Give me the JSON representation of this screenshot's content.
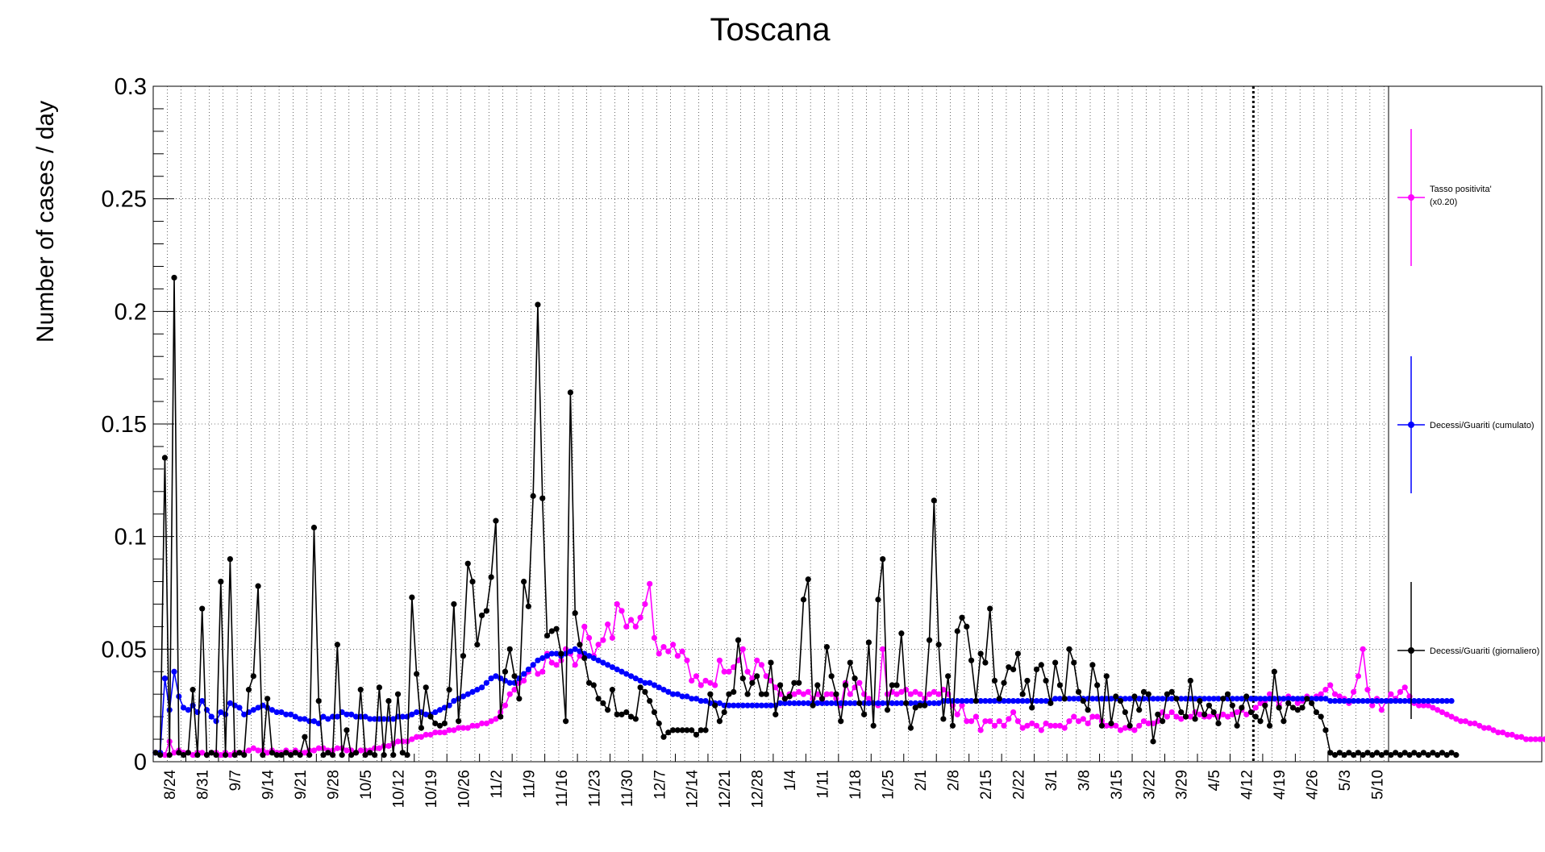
{
  "chart_data": {
    "type": "line",
    "title": "Toscana",
    "ylabel": "Number of cases / day",
    "xlabel": "",
    "ylim": [
      0,
      0.3
    ],
    "x_start_date": "2020-08-24",
    "x_end_date": "2021-05-16",
    "y_ticks": [
      "0",
      "0.05",
      "0.1",
      "0.15",
      "0.2",
      "0.25",
      "0.3"
    ],
    "x_tick_labels": [
      "8/24",
      "8/31",
      "9/7",
      "9/14",
      "9/21",
      "9/28",
      "10/5",
      "10/12",
      "10/19",
      "10/26",
      "11/2",
      "11/9",
      "11/16",
      "11/23",
      "11/30",
      "12/7",
      "12/14",
      "12/21",
      "12/28",
      "1/4",
      "1/11",
      "1/18",
      "1/25",
      "2/1",
      "2/8",
      "2/15",
      "2/22",
      "3/1",
      "3/8",
      "3/15",
      "3/22",
      "3/29",
      "4/5",
      "4/12",
      "4/19",
      "4/26",
      "5/3",
      "5/10"
    ],
    "grid": true,
    "legend_placement": "right",
    "marker_date": "2021-04-17",
    "series": [
      {
        "name": "Tasso positivita' (x0.20)",
        "color": "#ff00ff",
        "values": [
          0.004,
          0.004,
          0.003,
          0.009,
          0.004,
          0.005,
          0.004,
          0.004,
          0.003,
          0.004,
          0.004,
          0.003,
          0.004,
          0.004,
          0.003,
          0.004,
          0.003,
          0.004,
          0.004,
          0.004,
          0.005,
          0.006,
          0.005,
          0.005,
          0.004,
          0.005,
          0.004,
          0.004,
          0.005,
          0.004,
          0.005,
          0.004,
          0.004,
          0.005,
          0.005,
          0.006,
          0.006,
          0.005,
          0.005,
          0.006,
          0.006,
          0.005,
          0.005,
          0.004,
          0.005,
          0.005,
          0.005,
          0.006,
          0.006,
          0.007,
          0.007,
          0.008,
          0.009,
          0.009,
          0.009,
          0.01,
          0.011,
          0.011,
          0.012,
          0.012,
          0.013,
          0.013,
          0.013,
          0.014,
          0.014,
          0.015,
          0.015,
          0.015,
          0.016,
          0.016,
          0.017,
          0.017,
          0.018,
          0.019,
          0.022,
          0.025,
          0.03,
          0.032,
          0.035,
          0.036,
          0.04,
          0.043,
          0.039,
          0.04,
          0.048,
          0.044,
          0.043,
          0.045,
          0.05,
          0.048,
          0.043,
          0.047,
          0.06,
          0.055,
          0.047,
          0.052,
          0.054,
          0.061,
          0.055,
          0.07,
          0.067,
          0.06,
          0.063,
          0.06,
          0.064,
          0.07,
          0.079,
          0.055,
          0.048,
          0.051,
          0.049,
          0.052,
          0.047,
          0.049,
          0.045,
          0.036,
          0.038,
          0.034,
          0.036,
          0.035,
          0.034,
          0.045,
          0.04,
          0.04,
          0.042,
          0.045,
          0.05,
          0.04,
          0.037,
          0.045,
          0.043,
          0.038,
          0.036,
          0.033,
          0.03,
          0.028,
          0.03,
          0.03,
          0.031,
          0.03,
          0.031,
          0.028,
          0.03,
          0.027,
          0.03,
          0.03,
          0.028,
          0.025,
          0.035,
          0.03,
          0.033,
          0.035,
          0.03,
          0.028,
          0.026,
          0.025,
          0.05,
          0.03,
          0.031,
          0.03,
          0.031,
          0.032,
          0.03,
          0.031,
          0.03,
          0.028,
          0.03,
          0.031,
          0.03,
          0.032,
          0.03,
          0.025,
          0.021,
          0.025,
          0.018,
          0.018,
          0.02,
          0.014,
          0.018,
          0.018,
          0.016,
          0.018,
          0.016,
          0.019,
          0.022,
          0.018,
          0.015,
          0.016,
          0.017,
          0.016,
          0.014,
          0.017,
          0.016,
          0.016,
          0.016,
          0.015,
          0.018,
          0.02,
          0.018,
          0.019,
          0.017,
          0.02,
          0.02,
          0.018,
          0.016,
          0.016,
          0.016,
          0.014,
          0.015,
          0.015,
          0.014,
          0.016,
          0.018,
          0.017,
          0.017,
          0.018,
          0.022,
          0.02,
          0.022,
          0.02,
          0.019,
          0.02,
          0.02,
          0.022,
          0.021,
          0.02,
          0.02,
          0.021,
          0.02,
          0.021,
          0.02,
          0.021,
          0.022,
          0.023,
          0.021,
          0.022,
          0.024,
          0.026,
          0.027,
          0.03,
          0.028,
          0.025,
          0.028,
          0.029,
          0.028,
          0.026,
          0.027,
          0.029,
          0.028,
          0.029,
          0.03,
          0.032,
          0.034,
          0.03,
          0.029,
          0.028,
          0.026,
          0.031,
          0.038,
          0.05,
          0.032,
          0.025,
          0.028,
          0.023,
          0.027,
          0.03,
          0.028,
          0.031,
          0.033,
          0.029,
          0.026,
          0.025,
          0.025,
          0.025,
          0.024,
          0.023,
          0.022,
          0.021,
          0.02,
          0.019,
          0.018,
          0.018,
          0.017,
          0.017,
          0.016,
          0.015,
          0.015,
          0.014,
          0.013,
          0.013,
          0.012,
          0.012,
          0.011,
          0.011,
          0.01,
          0.01,
          0.01,
          0.01,
          0.01
        ]
      },
      {
        "name": "Decessi/Guariti (cumulato)",
        "color": "#0000ff",
        "values": [
          0.004,
          0.004,
          0.037,
          0.023,
          0.04,
          0.029,
          0.024,
          0.023,
          0.025,
          0.022,
          0.027,
          0.023,
          0.02,
          0.018,
          0.022,
          0.021,
          0.026,
          0.025,
          0.024,
          0.021,
          0.022,
          0.023,
          0.024,
          0.025,
          0.024,
          0.023,
          0.022,
          0.022,
          0.021,
          0.021,
          0.02,
          0.019,
          0.019,
          0.018,
          0.018,
          0.017,
          0.02,
          0.019,
          0.02,
          0.02,
          0.022,
          0.021,
          0.021,
          0.02,
          0.02,
          0.02,
          0.019,
          0.019,
          0.019,
          0.019,
          0.019,
          0.019,
          0.02,
          0.02,
          0.02,
          0.021,
          0.022,
          0.022,
          0.021,
          0.021,
          0.022,
          0.023,
          0.024,
          0.025,
          0.027,
          0.028,
          0.029,
          0.03,
          0.031,
          0.032,
          0.033,
          0.035,
          0.037,
          0.038,
          0.037,
          0.036,
          0.035,
          0.035,
          0.037,
          0.039,
          0.041,
          0.043,
          0.045,
          0.046,
          0.047,
          0.048,
          0.048,
          0.047,
          0.048,
          0.049,
          0.05,
          0.049,
          0.048,
          0.047,
          0.046,
          0.045,
          0.044,
          0.043,
          0.042,
          0.041,
          0.04,
          0.039,
          0.038,
          0.037,
          0.036,
          0.035,
          0.035,
          0.034,
          0.033,
          0.032,
          0.031,
          0.03,
          0.03,
          0.029,
          0.029,
          0.028,
          0.028,
          0.027,
          0.027,
          0.026,
          0.026,
          0.026,
          0.025,
          0.025,
          0.025,
          0.025,
          0.025,
          0.025,
          0.025,
          0.025,
          0.025,
          0.025,
          0.025,
          0.025,
          0.026,
          0.026,
          0.026,
          0.026,
          0.026,
          0.026,
          0.026,
          0.026,
          0.026,
          0.026,
          0.026,
          0.026,
          0.026,
          0.026,
          0.026,
          0.026,
          0.026,
          0.026,
          0.026,
          0.026,
          0.026,
          0.026,
          0.026,
          0.026,
          0.026,
          0.026,
          0.026,
          0.026,
          0.026,
          0.026,
          0.026,
          0.026,
          0.026,
          0.026,
          0.026,
          0.027,
          0.027,
          0.027,
          0.027,
          0.027,
          0.027,
          0.027,
          0.027,
          0.027,
          0.027,
          0.027,
          0.027,
          0.027,
          0.027,
          0.027,
          0.027,
          0.027,
          0.027,
          0.027,
          0.027,
          0.027,
          0.027,
          0.027,
          0.027,
          0.028,
          0.028,
          0.028,
          0.028,
          0.028,
          0.028,
          0.028,
          0.028,
          0.028,
          0.028,
          0.028,
          0.028,
          0.028,
          0.028,
          0.028,
          0.028,
          0.028,
          0.028,
          0.028,
          0.028,
          0.028,
          0.028,
          0.028,
          0.028,
          0.028,
          0.028,
          0.028,
          0.028,
          0.028,
          0.028,
          0.028,
          0.028,
          0.028,
          0.028,
          0.028,
          0.028,
          0.028,
          0.028,
          0.028,
          0.028,
          0.028,
          0.028,
          0.028,
          0.028,
          0.028,
          0.028,
          0.028,
          0.028,
          0.028,
          0.028,
          0.028,
          0.028,
          0.028,
          0.028,
          0.028,
          0.028,
          0.028,
          0.028,
          0.028,
          0.027,
          0.027,
          0.027,
          0.027,
          0.027,
          0.027,
          0.027,
          0.027,
          0.027,
          0.027,
          0.027,
          0.027,
          0.027,
          0.027,
          0.027,
          0.027,
          0.027,
          0.027,
          0.027,
          0.027,
          0.027,
          0.027,
          0.027,
          0.027,
          0.027,
          0.027,
          0.027
        ]
      },
      {
        "name": "Decessi/Guariti (giornaliero)",
        "color": "#000000",
        "values": [
          0.004,
          0.003,
          0.135,
          0.003,
          0.215,
          0.004,
          0.003,
          0.004,
          0.032,
          0.003,
          0.068,
          0.003,
          0.004,
          0.003,
          0.08,
          0.003,
          0.09,
          0.003,
          0.004,
          0.003,
          0.032,
          0.038,
          0.078,
          0.003,
          0.028,
          0.004,
          0.003,
          0.003,
          0.004,
          0.003,
          0.004,
          0.003,
          0.011,
          0.003,
          0.104,
          0.027,
          0.003,
          0.004,
          0.003,
          0.052,
          0.003,
          0.014,
          0.003,
          0.004,
          0.032,
          0.003,
          0.004,
          0.003,
          0.033,
          0.003,
          0.027,
          0.003,
          0.03,
          0.004,
          0.003,
          0.073,
          0.039,
          0.015,
          0.033,
          0.02,
          0.017,
          0.016,
          0.017,
          0.032,
          0.07,
          0.018,
          0.047,
          0.088,
          0.08,
          0.052,
          0.065,
          0.067,
          0.082,
          0.107,
          0.02,
          0.04,
          0.05,
          0.038,
          0.028,
          0.08,
          0.069,
          0.118,
          0.203,
          0.117,
          0.056,
          0.058,
          0.059,
          0.048,
          0.018,
          0.164,
          0.066,
          0.052,
          0.046,
          0.035,
          0.034,
          0.028,
          0.026,
          0.023,
          0.032,
          0.021,
          0.021,
          0.022,
          0.02,
          0.019,
          0.033,
          0.031,
          0.027,
          0.022,
          0.017,
          0.011,
          0.013,
          0.014,
          0.014,
          0.014,
          0.014,
          0.014,
          0.012,
          0.014,
          0.014,
          0.03,
          0.025,
          0.018,
          0.022,
          0.03,
          0.031,
          0.054,
          0.037,
          0.03,
          0.035,
          0.038,
          0.03,
          0.03,
          0.044,
          0.021,
          0.034,
          0.028,
          0.029,
          0.035,
          0.035,
          0.072,
          0.081,
          0.025,
          0.034,
          0.028,
          0.051,
          0.038,
          0.03,
          0.018,
          0.034,
          0.044,
          0.037,
          0.026,
          0.021,
          0.053,
          0.016,
          0.072,
          0.09,
          0.023,
          0.034,
          0.034,
          0.057,
          0.026,
          0.015,
          0.024,
          0.025,
          0.025,
          0.054,
          0.116,
          0.052,
          0.019,
          0.038,
          0.016,
          0.058,
          0.064,
          0.06,
          0.045,
          0.027,
          0.048,
          0.044,
          0.068,
          0.036,
          0.028,
          0.035,
          0.042,
          0.041,
          0.048,
          0.03,
          0.036,
          0.024,
          0.041,
          0.043,
          0.036,
          0.026,
          0.044,
          0.034,
          0.028,
          0.05,
          0.044,
          0.031,
          0.027,
          0.023,
          0.043,
          0.034,
          0.016,
          0.038,
          0.017,
          0.029,
          0.027,
          0.022,
          0.016,
          0.029,
          0.023,
          0.031,
          0.03,
          0.009,
          0.021,
          0.018,
          0.03,
          0.031,
          0.028,
          0.022,
          0.02,
          0.036,
          0.019,
          0.027,
          0.021,
          0.025,
          0.022,
          0.017,
          0.028,
          0.03,
          0.025,
          0.016,
          0.024,
          0.029,
          0.022,
          0.02,
          0.018,
          0.025,
          0.016,
          0.04,
          0.024,
          0.018,
          0.026,
          0.024,
          0.023,
          0.024,
          0.028,
          0.026,
          0.022,
          0.02,
          0.014,
          0.004,
          0.003,
          0.004,
          0.003,
          0.004,
          0.003,
          0.004,
          0.003,
          0.004,
          0.003,
          0.004,
          0.003,
          0.004,
          0.003,
          0.004,
          0.003,
          0.004,
          0.003,
          0.004,
          0.003,
          0.004,
          0.003,
          0.004,
          0.003,
          0.004,
          0.003,
          0.004,
          0.003
        ]
      }
    ]
  }
}
